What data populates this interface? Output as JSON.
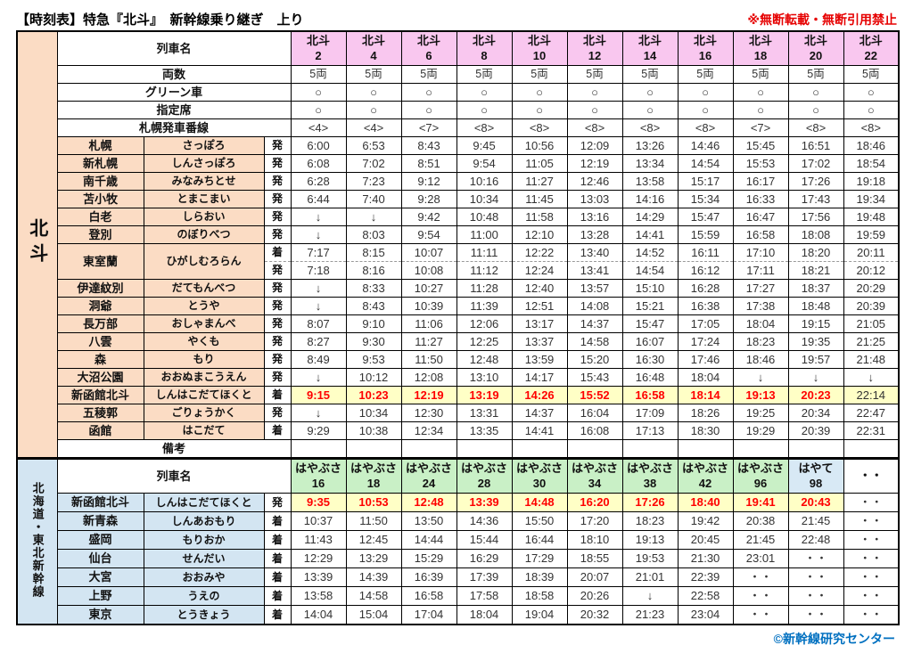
{
  "title": "【時刻表】特急『北斗』　新幹線乗り継ぎ　上り",
  "notice": "※無断転載・無断引用禁止",
  "credit": "©新幹線研究センター",
  "colors": {
    "header_pink": "#f9c7ef",
    "header_green": "#c9f0c6",
    "header_blue": "#d8e9f5",
    "label_green": "#d9f5d2",
    "station_peach": "#fbdcc4",
    "station_blue": "#d3e5f2",
    "highlight_yellow": "#ffffc6",
    "highlight_red": "#ff0000",
    "credit_blue": "#0070c0",
    "notice_red": "#e60000"
  },
  "hokuto": {
    "left_label": "北斗",
    "train_name_label": "列車名",
    "trains": [
      {
        "t": "北斗\n2",
        "c": "pink"
      },
      {
        "t": "北斗\n4",
        "c": "pink"
      },
      {
        "t": "北斗\n6",
        "c": "pink"
      },
      {
        "t": "北斗\n8",
        "c": "pink"
      },
      {
        "t": "北斗\n10",
        "c": "pink"
      },
      {
        "t": "北斗\n12",
        "c": "pink"
      },
      {
        "t": "北斗\n14",
        "c": "pink"
      },
      {
        "t": "北斗\n16",
        "c": "pink"
      },
      {
        "t": "北斗\n18",
        "c": "pink"
      },
      {
        "t": "北斗\n20",
        "c": "pink"
      },
      {
        "t": "北斗\n22",
        "c": "pink"
      }
    ],
    "cars_label": "両数",
    "cars": [
      "5両",
      "5両",
      "5両",
      "5両",
      "5両",
      "5両",
      "5両",
      "5両",
      "5両",
      "5両",
      "5両"
    ],
    "green_car_label": "グリーン車",
    "green_car": [
      "○",
      "○",
      "○",
      "○",
      "○",
      "○",
      "○",
      "○",
      "○",
      "○",
      "○"
    ],
    "reserved_label": "指定席",
    "reserved": [
      "○",
      "○",
      "○",
      "○",
      "○",
      "○",
      "○",
      "○",
      "○",
      "○",
      "○"
    ],
    "platform_label": "札幌発車番線",
    "platforms": [
      "<4>",
      "<4>",
      "<7>",
      "<8>",
      "<8>",
      "<8>",
      "<8>",
      "<8>",
      "<7>",
      "<8>",
      "<8>"
    ],
    "remarks_label": "備考",
    "remarks": [
      "",
      "",
      "",
      "",
      "",
      "",
      "",
      "",
      "",
      "",
      ""
    ],
    "stations": [
      {
        "kanji": "札幌",
        "kana": "さっぽろ",
        "mark": "発",
        "times": [
          "6:00",
          "6:53",
          "8:43",
          "9:45",
          "10:56",
          "12:09",
          "13:26",
          "14:46",
          "15:45",
          "16:51",
          "18:46"
        ]
      },
      {
        "kanji": "新札幌",
        "kana": "しんさっぽろ",
        "mark": "発",
        "times": [
          "6:08",
          "7:02",
          "8:51",
          "9:54",
          "11:05",
          "12:19",
          "13:34",
          "14:54",
          "15:53",
          "17:02",
          "18:54"
        ]
      },
      {
        "kanji": "南千歳",
        "kana": "みなみちとせ",
        "mark": "発",
        "times": [
          "6:28",
          "7:23",
          "9:12",
          "10:16",
          "11:27",
          "12:46",
          "13:58",
          "15:17",
          "16:17",
          "17:26",
          "19:18"
        ]
      },
      {
        "kanji": "苫小牧",
        "kana": "とまこまい",
        "mark": "発",
        "times": [
          "6:44",
          "7:40",
          "9:28",
          "10:34",
          "11:45",
          "13:03",
          "14:16",
          "15:34",
          "16:33",
          "17:43",
          "19:34"
        ]
      },
      {
        "kanji": "白老",
        "kana": "しらおい",
        "mark": "発",
        "times": [
          "↓",
          "↓",
          "9:42",
          "10:48",
          "11:58",
          "13:16",
          "14:29",
          "15:47",
          "16:47",
          "17:56",
          "19:48"
        ]
      },
      {
        "kanji": "登別",
        "kana": "のぼりべつ",
        "mark": "発",
        "times": [
          "↓",
          "8:03",
          "9:54",
          "11:00",
          "12:10",
          "13:28",
          "14:41",
          "15:59",
          "16:58",
          "18:08",
          "19:59"
        ]
      },
      {
        "kanji": "東室蘭",
        "kana": "ひがしむろらん",
        "mark": "着",
        "times": [
          "7:17",
          "8:15",
          "10:07",
          "11:11",
          "12:22",
          "13:40",
          "14:52",
          "16:11",
          "17:10",
          "18:20",
          "20:11"
        ]
      },
      {
        "kanji": "",
        "kana": "",
        "mark": "発",
        "times": [
          "7:18",
          "8:16",
          "10:08",
          "11:12",
          "12:24",
          "13:41",
          "14:54",
          "16:12",
          "17:11",
          "18:21",
          "20:12"
        ]
      },
      {
        "kanji": "伊達紋別",
        "kana": "だてもんべつ",
        "mark": "発",
        "times": [
          "↓",
          "8:33",
          "10:27",
          "11:28",
          "12:40",
          "13:57",
          "15:10",
          "16:28",
          "17:27",
          "18:37",
          "20:29"
        ]
      },
      {
        "kanji": "洞爺",
        "kana": "とうや",
        "mark": "発",
        "times": [
          "↓",
          "8:43",
          "10:39",
          "11:39",
          "12:51",
          "14:08",
          "15:21",
          "16:38",
          "17:38",
          "18:48",
          "20:39"
        ]
      },
      {
        "kanji": "長万部",
        "kana": "おしゃまんべ",
        "mark": "発",
        "times": [
          "8:07",
          "9:10",
          "11:06",
          "12:06",
          "13:17",
          "14:37",
          "15:47",
          "17:05",
          "18:04",
          "19:15",
          "21:05"
        ]
      },
      {
        "kanji": "八雲",
        "kana": "やくも",
        "mark": "発",
        "times": [
          "8:27",
          "9:30",
          "11:27",
          "12:25",
          "13:37",
          "14:58",
          "16:07",
          "17:24",
          "18:23",
          "19:35",
          "21:25"
        ]
      },
      {
        "kanji": "森",
        "kana": "もり",
        "mark": "発",
        "times": [
          "8:49",
          "9:53",
          "11:50",
          "12:48",
          "13:59",
          "15:20",
          "16:30",
          "17:46",
          "18:46",
          "19:57",
          "21:48"
        ]
      },
      {
        "kanji": "大沼公園",
        "kana": "おおぬまこうえん",
        "mark": "発",
        "times": [
          "↓",
          "10:12",
          "12:08",
          "13:10",
          "14:17",
          "15:43",
          "16:48",
          "18:04",
          "↓",
          "↓",
          "↓"
        ]
      },
      {
        "kanji": "新函館北斗",
        "kana": "しんはこだてほくと",
        "mark": "着",
        "times": [
          {
            "t": "9:15",
            "c": "red hl"
          },
          {
            "t": "10:23",
            "c": "red hl"
          },
          {
            "t": "12:19",
            "c": "red hl"
          },
          {
            "t": "13:19",
            "c": "red hl"
          },
          {
            "t": "14:26",
            "c": "red hl"
          },
          {
            "t": "15:52",
            "c": "red hl"
          },
          {
            "t": "16:58",
            "c": "red hl"
          },
          {
            "t": "18:14",
            "c": "red hl"
          },
          {
            "t": "19:13",
            "c": "red hl"
          },
          {
            "t": "20:23",
            "c": "red hl"
          },
          {
            "t": "22:14",
            "c": "hl"
          }
        ]
      },
      {
        "kanji": "五稜郭",
        "kana": "ごりょうかく",
        "mark": "発",
        "times": [
          "↓",
          "10:34",
          "12:30",
          "13:31",
          "14:37",
          "16:04",
          "17:09",
          "18:26",
          "19:25",
          "20:34",
          "22:47"
        ]
      },
      {
        "kanji": "函館",
        "kana": "はこだて",
        "mark": "着",
        "times": [
          "9:29",
          "10:38",
          "12:34",
          "13:35",
          "14:41",
          "16:08",
          "17:13",
          "18:30",
          "19:29",
          "20:39",
          "22:31"
        ]
      }
    ]
  },
  "shinkansen": {
    "left_label": "北海道・東北新幹線",
    "train_name_label": "列車名",
    "trains": [
      {
        "t": "はやぶさ\n16",
        "c": "green"
      },
      {
        "t": "はやぶさ\n18",
        "c": "green"
      },
      {
        "t": "はやぶさ\n24",
        "c": "green"
      },
      {
        "t": "はやぶさ\n28",
        "c": "green"
      },
      {
        "t": "はやぶさ\n30",
        "c": "green"
      },
      {
        "t": "はやぶさ\n34",
        "c": "green"
      },
      {
        "t": "はやぶさ\n38",
        "c": "green"
      },
      {
        "t": "はやぶさ\n42",
        "c": "green"
      },
      {
        "t": "はやぶさ\n96",
        "c": "green"
      },
      {
        "t": "はやて\n98",
        "c": "blue"
      },
      {
        "t": "・・",
        "c": ""
      }
    ],
    "stations": [
      {
        "kanji": "新函館北斗",
        "kana": "しんはこだてほくと",
        "mark": "発",
        "times": [
          {
            "t": "9:35",
            "c": "red hl"
          },
          {
            "t": "10:53",
            "c": "red hl"
          },
          {
            "t": "12:48",
            "c": "red hl"
          },
          {
            "t": "13:39",
            "c": "red hl"
          },
          {
            "t": "14:48",
            "c": "red hl"
          },
          {
            "t": "16:20",
            "c": "red hl"
          },
          {
            "t": "17:26",
            "c": "red hl"
          },
          {
            "t": "18:40",
            "c": "red hl"
          },
          {
            "t": "19:41",
            "c": "red hl"
          },
          {
            "t": "20:43",
            "c": "red hl"
          },
          {
            "t": "・・",
            "c": ""
          }
        ]
      },
      {
        "kanji": "新青森",
        "kana": "しんあおもり",
        "mark": "着",
        "times": [
          "10:37",
          "11:50",
          "13:50",
          "14:36",
          "15:50",
          "17:20",
          "18:23",
          "19:42",
          "20:38",
          "21:45",
          "・・"
        ]
      },
      {
        "kanji": "盛岡",
        "kana": "もりおか",
        "mark": "着",
        "times": [
          "11:43",
          "12:45",
          "14:44",
          "15:44",
          "16:44",
          "18:10",
          "19:13",
          "20:45",
          "21:45",
          "22:48",
          "・・"
        ]
      },
      {
        "kanji": "仙台",
        "kana": "せんだい",
        "mark": "着",
        "times": [
          "12:29",
          "13:29",
          "15:29",
          "16:29",
          "17:29",
          "18:55",
          "19:53",
          "21:30",
          "23:01",
          "・・",
          "・・"
        ]
      },
      {
        "kanji": "大宮",
        "kana": "おおみや",
        "mark": "着",
        "times": [
          "13:39",
          "14:39",
          "16:39",
          "17:39",
          "18:39",
          "20:07",
          "21:01",
          "22:39",
          "・・",
          "・・",
          "・・"
        ]
      },
      {
        "kanji": "上野",
        "kana": "うえの",
        "mark": "着",
        "times": [
          "13:58",
          "14:58",
          "16:58",
          "17:58",
          "18:58",
          "20:26",
          "↓",
          "22:58",
          "・・",
          "・・",
          "・・"
        ]
      },
      {
        "kanji": "東京",
        "kana": "とうきょう",
        "mark": "着",
        "times": [
          "14:04",
          "15:04",
          "17:04",
          "18:04",
          "19:04",
          "20:32",
          "21:23",
          "23:04",
          "・・",
          "・・",
          "・・"
        ]
      }
    ]
  }
}
